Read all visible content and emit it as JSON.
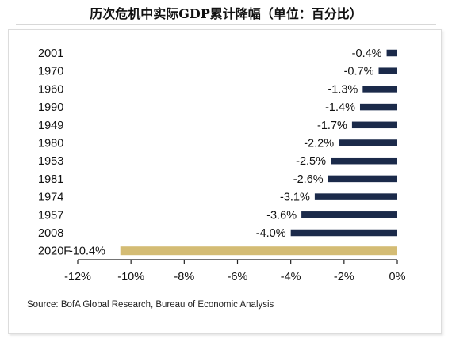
{
  "title": "历次危机中实际GDP累计降幅（单位：百分比）",
  "source": "Source: BofA Global Research, Bureau of Economic Analysis",
  "colors": {
    "bar": "#1b2a4a",
    "highlight": "#d4bc74",
    "axis": "#222222"
  },
  "chart_data": {
    "type": "bar",
    "orientation": "horizontal",
    "categories": [
      "2001",
      "1970",
      "1960",
      "1990",
      "1949",
      "1980",
      "1953",
      "1981",
      "1974",
      "1957",
      "2008",
      "2020F"
    ],
    "values": [
      -0.4,
      -0.7,
      -1.3,
      -1.4,
      -1.7,
      -2.2,
      -2.5,
      -2.6,
      -3.1,
      -3.6,
      -4.0,
      -10.4
    ],
    "value_labels": [
      "-0.4%",
      "-0.7%",
      "-1.3%",
      "-1.4%",
      "-1.7%",
      "-2.2%",
      "-2.5%",
      "-2.6%",
      "-3.1%",
      "-3.6%",
      "-4.0%",
      "-10.4%"
    ],
    "highlight_category": "2020F",
    "xlim": [
      -12,
      0
    ],
    "xticks": [
      -12,
      -10,
      -8,
      -6,
      -4,
      -2,
      0
    ],
    "xtick_labels": [
      "-12%",
      "-10%",
      "-8%",
      "-6%",
      "-4%",
      "-2%",
      "0%"
    ],
    "grid": false,
    "legend": "none"
  }
}
